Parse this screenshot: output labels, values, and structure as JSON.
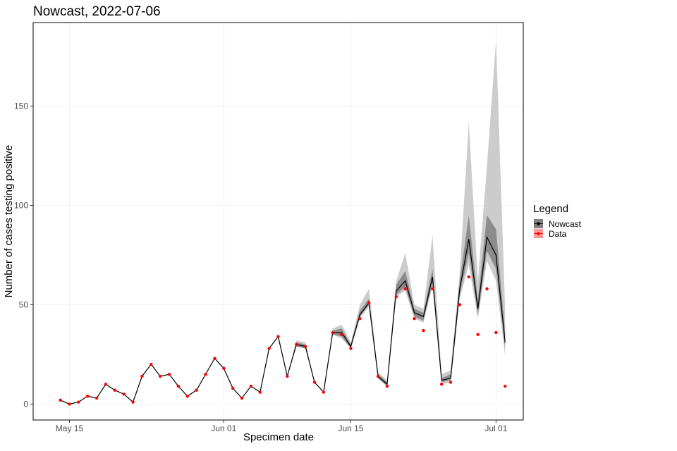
{
  "chart_data": {
    "type": "line",
    "title": "Nowcast, 2022-07-06",
    "xlabel": "Specimen date",
    "ylabel": "Number of cases testing positive",
    "x_start": "2022-05-14",
    "x_end": "2022-07-03",
    "xlim": [
      "2022-05-11",
      "2022-07-04"
    ],
    "ylim": [
      -8,
      192
    ],
    "x_ticks": [
      {
        "date": "2022-05-15",
        "label": "May 15"
      },
      {
        "date": "2022-06-01",
        "label": "Jun 01"
      },
      {
        "date": "2022-06-15",
        "label": "Jun 15"
      },
      {
        "date": "2022-07-01",
        "label": "Jul 01"
      }
    ],
    "y_ticks": [
      0,
      50,
      100,
      150
    ],
    "grid": true,
    "legend": {
      "title": "Legend",
      "position": "right",
      "entries": [
        {
          "label": "Nowcast",
          "color": "#000000",
          "fill": "#7f7f7f"
        },
        {
          "label": "Data",
          "color": "#ff0000",
          "fill": "#ff9999"
        }
      ]
    },
    "series": [
      {
        "name": "Nowcast",
        "color": "#000000",
        "values": [
          2,
          0,
          1,
          4,
          3,
          10,
          7,
          5,
          1,
          14,
          20,
          14,
          15,
          9,
          4,
          7,
          15,
          23,
          18,
          8,
          3,
          9,
          6,
          28,
          34,
          14,
          30,
          29,
          11,
          6,
          36,
          36,
          29,
          45,
          51,
          14,
          10,
          57,
          62,
          46,
          44,
          64,
          12,
          13,
          58,
          83,
          48,
          84,
          75,
          31
        ],
        "lower_inner": [
          2,
          0,
          1,
          4,
          3,
          10,
          7,
          5,
          1,
          14,
          20,
          14,
          15,
          9,
          4,
          7,
          15,
          23,
          18,
          8,
          3,
          9,
          6,
          28,
          34,
          14,
          29,
          28,
          11,
          6,
          35,
          34,
          28,
          44,
          50,
          13,
          9,
          55,
          59,
          44,
          42,
          61,
          11,
          12,
          55,
          76,
          45,
          77,
          68,
          28
        ],
        "upper_inner": [
          2,
          0,
          1,
          4,
          3,
          10,
          7,
          5,
          1,
          14,
          20,
          14,
          15,
          9,
          4,
          7,
          15,
          23,
          18,
          8,
          3,
          9,
          6,
          28,
          34,
          14,
          31,
          30,
          11,
          6,
          37,
          38,
          30,
          47,
          53,
          15,
          11,
          60,
          67,
          48,
          46,
          68,
          13,
          15,
          62,
          95,
          52,
          95,
          88,
          36
        ],
        "lower_outer": [
          2,
          0,
          1,
          4,
          3,
          10,
          7,
          5,
          1,
          14,
          20,
          14,
          15,
          9,
          4,
          7,
          15,
          23,
          18,
          8,
          3,
          9,
          6,
          28,
          34,
          14,
          29,
          28,
          11,
          6,
          35,
          33,
          28,
          43,
          49,
          13,
          9,
          54,
          57,
          43,
          41,
          59,
          10,
          11,
          53,
          70,
          43,
          72,
          62,
          24
        ],
        "upper_outer": [
          2,
          0,
          1,
          4,
          3,
          10,
          7,
          5,
          1,
          14,
          20,
          14,
          15,
          9,
          4,
          7,
          15,
          23,
          18,
          8,
          3,
          9,
          6,
          28,
          34,
          14,
          32,
          31,
          11,
          6,
          38,
          40,
          31,
          50,
          58,
          16,
          12,
          62,
          76,
          50,
          48,
          85,
          15,
          17,
          66,
          142,
          62,
          120,
          183,
          48
        ]
      },
      {
        "name": "Data",
        "color": "#ff0000",
        "values": [
          2,
          0,
          1,
          4,
          3,
          10,
          7,
          5,
          1,
          14,
          20,
          14,
          15,
          9,
          4,
          7,
          15,
          23,
          18,
          8,
          3,
          9,
          6,
          28,
          34,
          14,
          30,
          29,
          11,
          6,
          36,
          35,
          28,
          43,
          51,
          14,
          9,
          54,
          58,
          43,
          37,
          58,
          10,
          11,
          50,
          64,
          35,
          58,
          36,
          9
        ]
      }
    ]
  }
}
